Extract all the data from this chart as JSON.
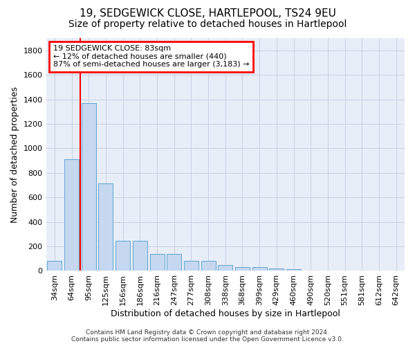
{
  "title": "19, SEDGEWICK CLOSE, HARTLEPOOL, TS24 9EU",
  "subtitle": "Size of property relative to detached houses in Hartlepool",
  "xlabel": "Distribution of detached houses by size in Hartlepool",
  "ylabel": "Number of detached properties",
  "categories": [
    "34sqm",
    "64sqm",
    "95sqm",
    "125sqm",
    "156sqm",
    "186sqm",
    "216sqm",
    "247sqm",
    "277sqm",
    "308sqm",
    "338sqm",
    "368sqm",
    "399sqm",
    "429sqm",
    "460sqm",
    "490sqm",
    "520sqm",
    "551sqm",
    "581sqm",
    "612sqm",
    "642sqm"
  ],
  "values": [
    80,
    910,
    1370,
    715,
    248,
    248,
    140,
    140,
    80,
    80,
    50,
    30,
    30,
    18,
    12,
    0,
    0,
    0,
    0,
    0,
    0
  ],
  "bar_color": "#c5d8f0",
  "bar_edge_color": "#6aaad4",
  "grid_color": "#c8d0e0",
  "vline_color": "red",
  "vline_x": 1.5,
  "annotation_text": "19 SEDGEWICK CLOSE: 83sqm\n← 12% of detached houses are smaller (440)\n87% of semi-detached houses are larger (3,183) →",
  "annotation_box_color": "red",
  "annotation_bg_color": "white",
  "ylim": [
    0,
    1900
  ],
  "yticks": [
    0,
    200,
    400,
    600,
    800,
    1000,
    1200,
    1400,
    1600,
    1800
  ],
  "footer": "Contains HM Land Registry data © Crown copyright and database right 2024.\nContains public sector information licensed under the Open Government Licence v3.0.",
  "background_color": "#e8eef8",
  "title_fontsize": 11,
  "subtitle_fontsize": 10,
  "tick_fontsize": 8,
  "ylabel_fontsize": 9,
  "xlabel_fontsize": 9,
  "annotation_fontsize": 8,
  "footer_fontsize": 6.5
}
